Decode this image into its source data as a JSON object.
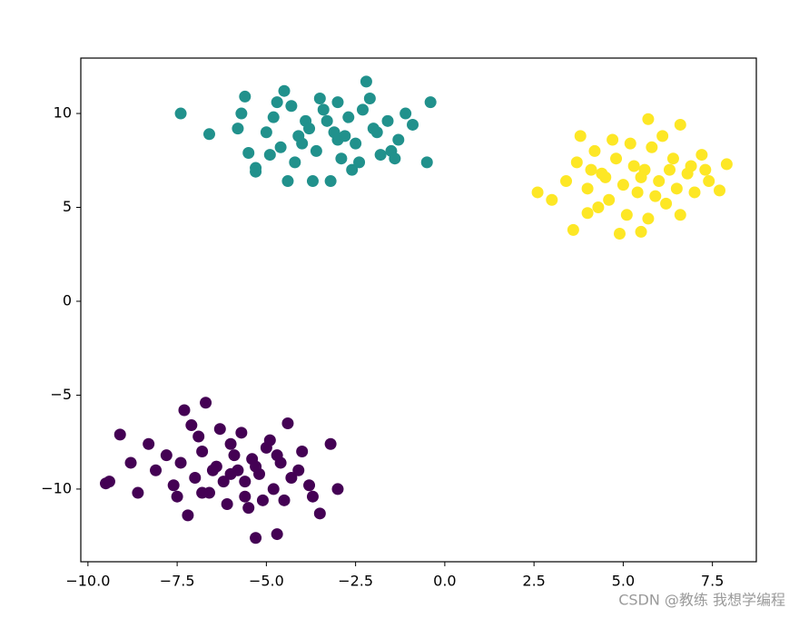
{
  "chart_data": {
    "type": "scatter",
    "xlim": [
      -10.2,
      8.73
    ],
    "ylim": [
      -13.87,
      12.95
    ],
    "xticks": [
      {
        "value": -10,
        "label": "−10.0"
      },
      {
        "value": -7.5,
        "label": "−7.5"
      },
      {
        "value": -5,
        "label": "−5.0"
      },
      {
        "value": -2.5,
        "label": "−2.5"
      },
      {
        "value": 0,
        "label": "0.0"
      },
      2.5,
      {
        "value": 5,
        "label": "5.0"
      },
      7.5
    ],
    "yticks": [
      {
        "value": -10,
        "label": "−10"
      },
      {
        "value": -5,
        "label": "−5"
      },
      0,
      5,
      10
    ],
    "series": [
      {
        "color": "#440154",
        "x": [
          -9.5,
          -9.4,
          -9.1,
          -8.8,
          -8.6,
          -7.3,
          -6.7,
          -7.2,
          -5.3,
          -4.7,
          -4.4,
          -3.5,
          -3.0,
          -3.2,
          -8.3,
          -8.1,
          -7.8,
          -7.6,
          -7.4,
          -7.0,
          -6.8,
          -6.6,
          -6.4,
          -6.2,
          -6.0,
          -5.8,
          -5.6,
          -5.4,
          -5.2,
          -5.0,
          -4.8,
          -4.6,
          -4.3,
          -4.0,
          -3.8,
          -6.9,
          -6.5,
          -6.1,
          -5.7,
          -5.5,
          -5.1,
          -4.9,
          -7.5,
          -6.3,
          -5.9,
          -4.5,
          -4.1,
          -3.7,
          -7.1,
          -6.0,
          -5.3,
          -5.6,
          -6.8,
          -4.7
        ],
        "y": [
          -9.7,
          -9.6,
          -7.1,
          -8.6,
          -10.2,
          -5.8,
          -5.4,
          -11.4,
          -12.6,
          -12.4,
          -6.5,
          -11.3,
          -10.0,
          -7.6,
          -7.6,
          -9.0,
          -8.2,
          -9.8,
          -8.6,
          -9.4,
          -8.0,
          -10.2,
          -8.8,
          -9.6,
          -7.6,
          -9.0,
          -10.4,
          -8.4,
          -9.2,
          -7.8,
          -10.0,
          -8.6,
          -9.4,
          -8.0,
          -9.8,
          -7.2,
          -9.0,
          -10.8,
          -7.0,
          -11.0,
          -10.6,
          -7.4,
          -10.4,
          -6.8,
          -8.2,
          -10.6,
          -9.0,
          -10.4,
          -6.6,
          -9.2,
          -8.8,
          -9.6,
          -10.2,
          -8.2
        ]
      },
      {
        "color": "#21918c",
        "x": [
          -7.4,
          -6.6,
          -5.6,
          -5.8,
          -5.7,
          -5.5,
          -5.3,
          -5.3,
          -4.4,
          -2.2,
          -0.4,
          -0.5,
          -0.9,
          -3.2,
          -4.5,
          -3.7,
          -5.0,
          -4.8,
          -4.6,
          -4.3,
          -4.1,
          -3.9,
          -3.6,
          -3.4,
          -3.1,
          -2.9,
          -2.7,
          -2.5,
          -2.3,
          -2.0,
          -1.8,
          -1.6,
          -1.3,
          -1.1,
          -4.9,
          -4.2,
          -3.5,
          -3.0,
          -2.6,
          -2.1,
          -1.5,
          -3.8,
          -3.3,
          -2.8,
          -4.7,
          -1.9,
          -2.4,
          -4.0,
          -3.0,
          -1.4
        ],
        "y": [
          10.0,
          8.9,
          10.9,
          9.2,
          10.0,
          7.9,
          7.1,
          6.9,
          6.4,
          11.7,
          10.6,
          7.4,
          9.4,
          6.4,
          11.2,
          6.4,
          9.0,
          9.8,
          8.2,
          10.4,
          8.8,
          9.6,
          8.0,
          10.2,
          9.0,
          7.6,
          9.8,
          8.4,
          10.2,
          9.2,
          7.8,
          9.6,
          8.6,
          10.0,
          7.8,
          7.4,
          10.8,
          8.6,
          7.0,
          10.8,
          8.0,
          9.2,
          9.6,
          8.8,
          10.6,
          9.0,
          7.4,
          8.4,
          10.6,
          7.6
        ]
      },
      {
        "color": "#fde725",
        "x": [
          2.6,
          3.6,
          4.9,
          5.5,
          5.7,
          6.6,
          7.9,
          7.7,
          3.8,
          3.0,
          6.6,
          4.0,
          3.4,
          3.7,
          4.0,
          4.2,
          4.4,
          4.6,
          4.8,
          5.0,
          5.2,
          5.4,
          5.6,
          5.8,
          6.0,
          6.2,
          6.4,
          6.8,
          7.0,
          7.2,
          7.4,
          4.3,
          4.7,
          5.1,
          5.3,
          5.9,
          6.1,
          6.5,
          6.9,
          4.5,
          5.5,
          6.3,
          7.3,
          4.1,
          5.7
        ],
        "y": [
          5.8,
          3.8,
          3.6,
          3.7,
          9.7,
          9.4,
          7.3,
          5.9,
          8.8,
          5.4,
          4.6,
          4.7,
          6.4,
          7.4,
          6.0,
          8.0,
          6.8,
          5.4,
          7.6,
          6.2,
          8.4,
          5.8,
          7.0,
          8.2,
          6.4,
          5.2,
          7.6,
          6.8,
          5.8,
          7.8,
          6.4,
          5.0,
          8.6,
          4.6,
          7.2,
          5.6,
          8.8,
          6.0,
          7.2,
          6.6,
          6.6,
          7.0,
          7.0,
          7.0,
          4.4
        ]
      }
    ],
    "watermark": "CSDN @教练 我想学编程"
  }
}
